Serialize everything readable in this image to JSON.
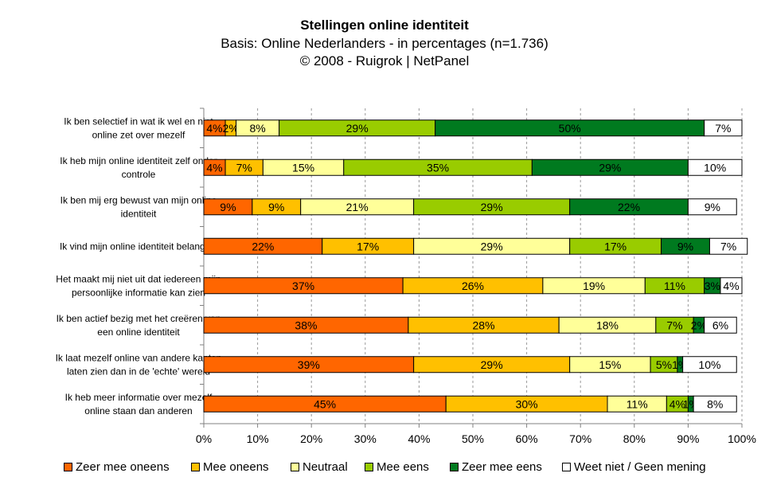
{
  "chart_data": {
    "type": "bar",
    "orientation": "horizontal",
    "stacked": true,
    "title": "Stellingen online identiteit",
    "subtitle": "Basis: Online Nederlanders - in percentages (n=1.736)",
    "source": "©  2008 - Ruigrok | NetPanel",
    "categories": [
      [
        "Ik ben selectief in wat ik wel en niet",
        "online zet over mezelf"
      ],
      [
        "Ik heb mijn online identiteit zelf onder",
        "controle"
      ],
      [
        "Ik ben mij erg bewust van mijn online",
        "identiteit"
      ],
      [
        "Ik vind mijn online identiteit belangrijk"
      ],
      [
        "Het maakt mij niet uit dat iedereen mijn",
        "persoonlijke informatie kan zien"
      ],
      [
        "Ik ben actief bezig met het creëren van",
        "een online identiteit"
      ],
      [
        "Ik laat mezelf online van andere kanten",
        "laten zien dan in de 'echte' wereld"
      ],
      [
        "Ik heb meer informatie over mezelf",
        "online staan dan anderen"
      ]
    ],
    "series": [
      {
        "name": "Zeer mee oneens",
        "color": "#FF6600",
        "values": [
          4,
          4,
          9,
          22,
          37,
          38,
          39,
          45
        ],
        "labels": [
          "4%",
          "4%",
          "9%",
          "22%",
          "37%",
          "38%",
          "39%",
          "45%"
        ]
      },
      {
        "name": "Mee oneens",
        "color": "#FFC000",
        "values": [
          2,
          7,
          9,
          17,
          26,
          28,
          29,
          30
        ],
        "labels": [
          "2%",
          "7%",
          "9%",
          "17%",
          "26%",
          "28%",
          "29%",
          "30%"
        ]
      },
      {
        "name": "Neutraal",
        "color": "#FFFF99",
        "values": [
          8,
          15,
          21,
          29,
          19,
          18,
          15,
          11
        ],
        "labels": [
          "8%",
          "15%",
          "21%",
          "29%",
          "19%",
          "18%",
          "15%",
          "11%"
        ]
      },
      {
        "name": "Mee eens",
        "color": "#99CC00",
        "values": [
          29,
          35,
          29,
          17,
          11,
          7,
          5,
          4
        ],
        "labels": [
          "29%",
          "35%",
          "29%",
          "17%",
          "11%",
          "7%",
          "5%",
          "4%"
        ]
      },
      {
        "name": "Zeer mee eens",
        "color": "#007A1F",
        "values": [
          50,
          29,
          22,
          9,
          3,
          2,
          1,
          1
        ],
        "labels": [
          "50%",
          "29%",
          "22%",
          "9%",
          "3%",
          "2%",
          "1%",
          "1%"
        ]
      },
      {
        "name": "Weet niet / Geen mening",
        "color": "#FFFFFF",
        "values": [
          7,
          10,
          9,
          7,
          4,
          6,
          10,
          8
        ],
        "labels": [
          "7%",
          "10%",
          "9%",
          "7%",
          "4%",
          "6%",
          "10%",
          "8%"
        ]
      }
    ],
    "xlim": [
      0,
      100
    ],
    "x_ticks": [
      "0%",
      "10%",
      "20%",
      "30%",
      "40%",
      "50%",
      "60%",
      "70%",
      "80%",
      "90%",
      "100%"
    ],
    "grid": true,
    "legend_position": "bottom"
  }
}
